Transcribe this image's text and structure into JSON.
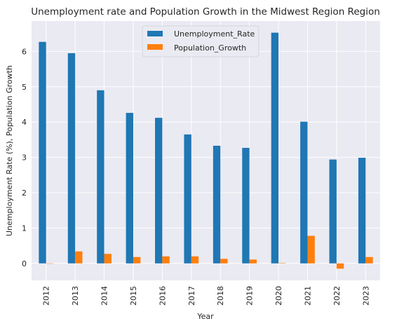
{
  "chart_data": {
    "type": "bar",
    "title": "Unemployment rate and Population Growth in the Midwest Region Region",
    "xlabel": "Year",
    "ylabel": "Unemployment Rate (%), Population Growth",
    "categories": [
      "2012",
      "2013",
      "2014",
      "2015",
      "2016",
      "2017",
      "2018",
      "2019",
      "2020",
      "2021",
      "2022",
      "2023"
    ],
    "series": [
      {
        "name": "Unemployment_Rate",
        "color": "#1f77b4",
        "values": [
          6.27,
          5.95,
          4.9,
          4.26,
          4.12,
          3.65,
          3.33,
          3.27,
          6.53,
          4.01,
          2.94,
          2.99
        ]
      },
      {
        "name": "Population_Growth",
        "color": "#ff7f0e",
        "values": [
          0.0,
          0.34,
          0.27,
          0.18,
          0.2,
          0.2,
          0.13,
          0.11,
          0.01,
          0.78,
          -0.15,
          0.18
        ]
      }
    ],
    "yticks": [
      "0",
      "1",
      "2",
      "3",
      "4",
      "5",
      "6"
    ],
    "ylim": [
      -0.48,
      6.86
    ],
    "grid": true,
    "legend": "top-center",
    "background": "#eaeaf2"
  }
}
